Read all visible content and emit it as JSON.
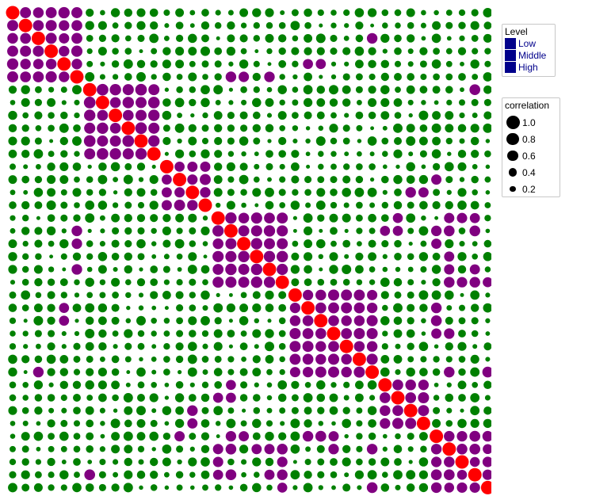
{
  "chart_data": {
    "type": "heatmap",
    "title": "",
    "xlabel": "",
    "ylabel": "",
    "n": 38,
    "colors": {
      "low": "#008000",
      "middle": "#800080",
      "high": "#ff0000"
    },
    "legend": {
      "level_title": "Level",
      "levels": [
        {
          "label": "Low",
          "color": "#00008b"
        },
        {
          "label": "Middle",
          "color": "#00008b"
        },
        {
          "label": "High",
          "color": "#00008b"
        }
      ],
      "level_text_color": "#00008b",
      "size_title": "correlation",
      "size_levels": [
        1.0,
        0.8,
        0.6,
        0.4,
        0.2
      ],
      "size_labels": [
        "1.0",
        "0.8",
        "0.6",
        "0.4",
        "0.2"
      ],
      "placement": "right"
    },
    "blocks": [
      {
        "start": 0,
        "end": 5,
        "value": 0.65
      },
      {
        "start": 6,
        "end": 11,
        "value": 0.7
      },
      {
        "start": 12,
        "end": 15,
        "value": 0.62
      },
      {
        "start": 16,
        "end": 21,
        "value": 0.68
      },
      {
        "start": 22,
        "end": 28,
        "value": 0.63
      },
      {
        "start": 29,
        "end": 32,
        "value": 0.66
      },
      {
        "start": 33,
        "end": 37,
        "value": 0.6
      }
    ],
    "extra_middle": [
      [
        0,
        5
      ],
      [
        4,
        24
      ],
      [
        4,
        23
      ],
      [
        5,
        17
      ],
      [
        5,
        18
      ],
      [
        5,
        20
      ],
      [
        2,
        28
      ],
      [
        14,
        31
      ],
      [
        14,
        32
      ],
      [
        16,
        34
      ],
      [
        16,
        35
      ],
      [
        16,
        36
      ],
      [
        17,
        34
      ],
      [
        17,
        36
      ],
      [
        20,
        34
      ],
      [
        20,
        36
      ],
      [
        21,
        34
      ],
      [
        21,
        35
      ],
      [
        21,
        36
      ],
      [
        21,
        37
      ],
      [
        23,
        33
      ],
      [
        24,
        33
      ],
      [
        25,
        33
      ],
      [
        25,
        34
      ],
      [
        28,
        34
      ],
      [
        28,
        37
      ],
      [
        13,
        33
      ],
      [
        16,
        30
      ],
      [
        17,
        30
      ],
      [
        17,
        29
      ],
      [
        6,
        36
      ],
      [
        33,
        17
      ],
      [
        33,
        18
      ],
      [
        34,
        19
      ]
    ],
    "diagonal_value": 1.0
  }
}
